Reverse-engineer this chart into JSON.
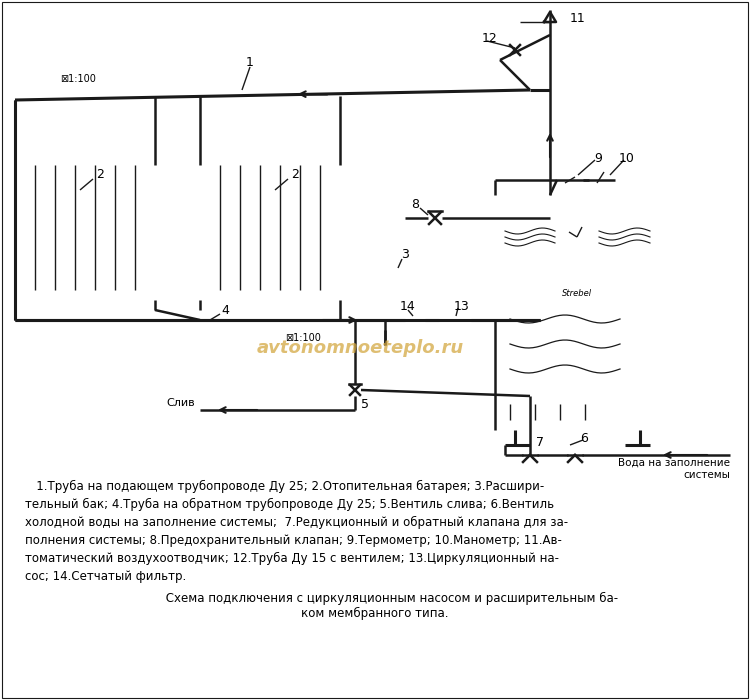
{
  "bg_color": "#ffffff",
  "line_color": "#1a1a1a",
  "watermark_color": "#d4a843",
  "watermark_text": "avtonomnoeteplo.ru",
  "description_lines": [
    "   1.Труба на подающем трубопроводе Ду 25; 2.Отопительная батарея; 3.Расшири-",
    "тельный бак; 4.Труба на обратном трубопроводе Ду 25; 5.Вентиль слива; 6.Вентиль",
    "холодной воды на заполнение системы;  7.Редукционный и обратный клапана для за-",
    "полнения системы; 8.Предохранительный клапан; 9.Термометр; 10.Манометр; 11.Ав-",
    "томатический воздухоотводчик; 12.Труба Ду 15 с вентилем; 13.Циркуляционный на-",
    "сос; 14.Сетчатый фильтр."
  ],
  "caption": "         Схема подключения с циркуляционным насосом и расширительным ба-\nком мембранного типа."
}
